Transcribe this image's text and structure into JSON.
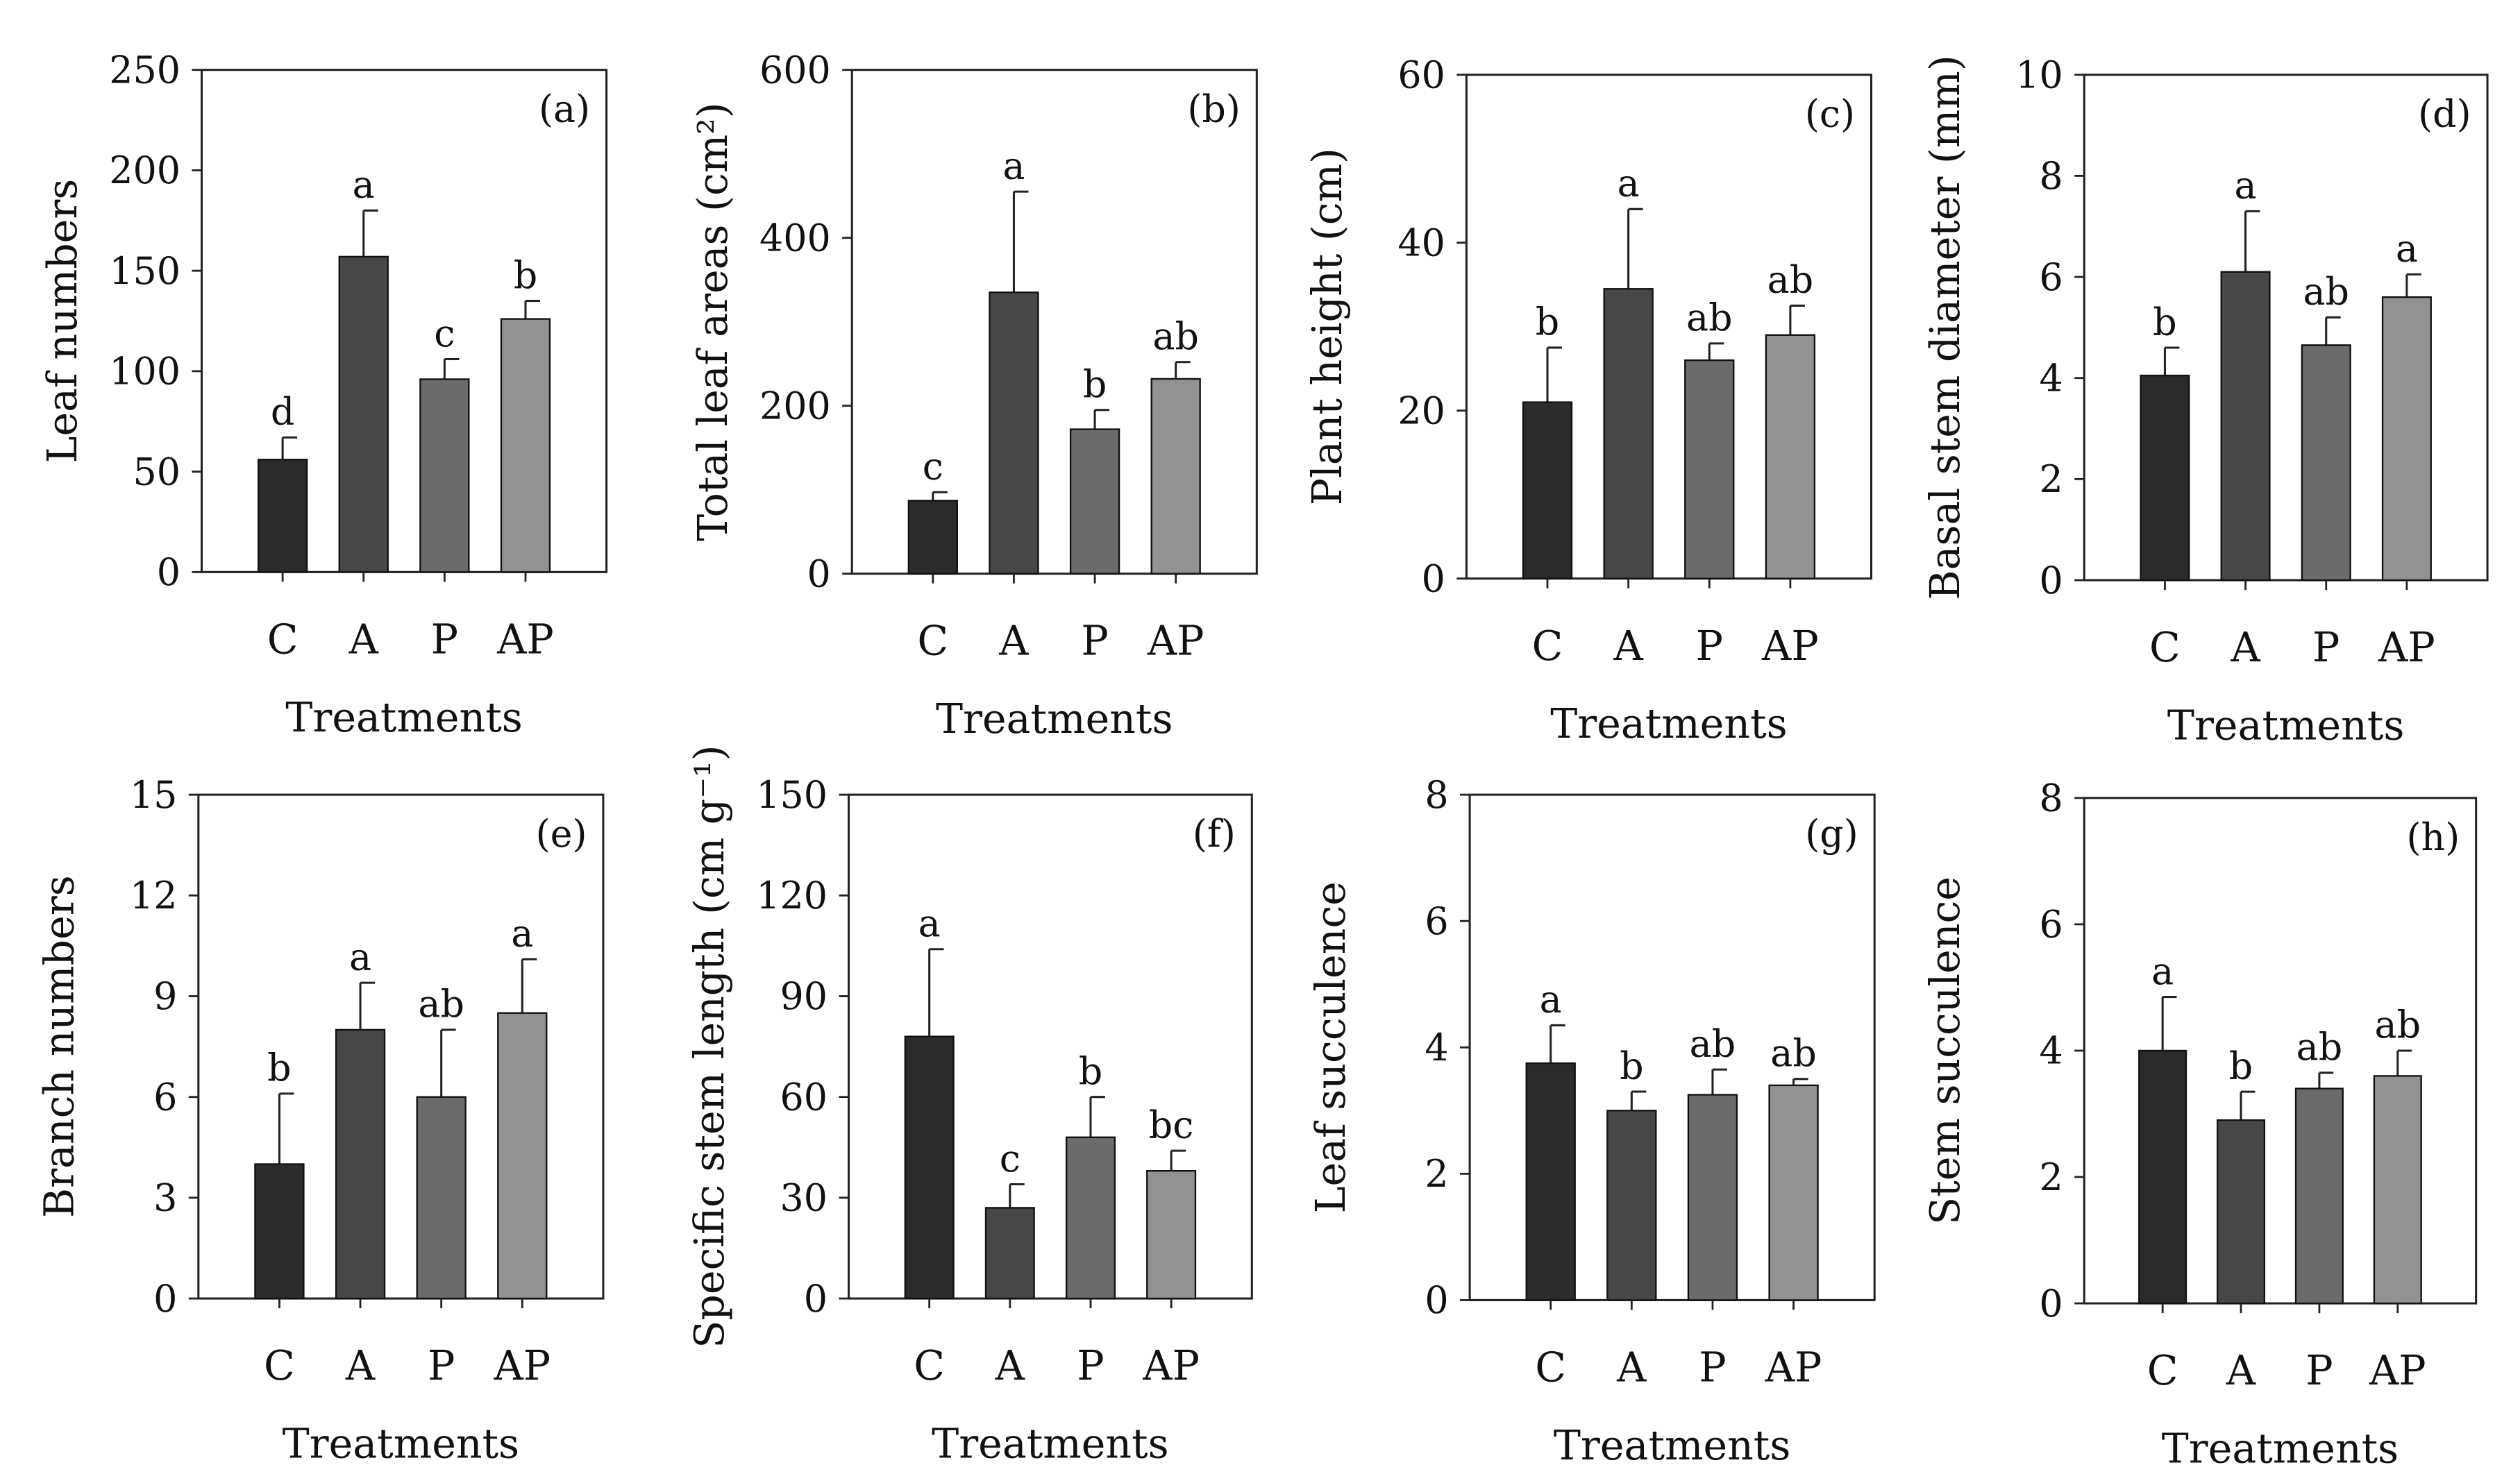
{
  "bar_colors": [
    "#2b2b2b",
    "#474747",
    "#6b6b6b",
    "#929292"
  ],
  "chart_data": [
    {
      "type": "bar",
      "panel": "(a)",
      "categories": [
        "C",
        "A",
        "P",
        "AP"
      ],
      "values": [
        56,
        157,
        96,
        126
      ],
      "errors": [
        11,
        23,
        10,
        9
      ],
      "letters": [
        "d",
        "a",
        "c",
        "b"
      ],
      "xlabel": "Treatments",
      "ylabel": "Leaf numbers",
      "ylim": [
        0,
        250
      ],
      "yticks": [
        "0",
        "50",
        "100",
        "150",
        "200",
        "250"
      ]
    },
    {
      "type": "bar",
      "panel": "(b)",
      "categories": [
        "C",
        "A",
        "P",
        "AP"
      ],
      "values": [
        87,
        335,
        172,
        232
      ],
      "errors": [
        10,
        120,
        23,
        20
      ],
      "letters": [
        "c",
        "a",
        "b",
        "ab"
      ],
      "xlabel": "Treatments",
      "ylabel": "Total leaf areas (cm²)",
      "ylim": [
        0,
        600
      ],
      "yticks": [
        "0",
        "200",
        "400",
        "600"
      ]
    },
    {
      "type": "bar",
      "panel": "(c)",
      "categories": [
        "C",
        "A",
        "P",
        "AP"
      ],
      "values": [
        21,
        34.5,
        26,
        29
      ],
      "errors": [
        6.5,
        9.5,
        2,
        3.5
      ],
      "letters": [
        "b",
        "a",
        "ab",
        "ab"
      ],
      "xlabel": "Treatments",
      "ylabel": "Plant height (cm)",
      "ylim": [
        0,
        60
      ],
      "yticks": [
        "0",
        "20",
        "40",
        "60"
      ]
    },
    {
      "type": "bar",
      "panel": "(d)",
      "categories": [
        "C",
        "A",
        "P",
        "AP"
      ],
      "values": [
        4.05,
        6.1,
        4.65,
        5.6
      ],
      "errors": [
        0.55,
        1.2,
        0.55,
        0.45
      ],
      "letters": [
        "b",
        "a",
        "ab",
        "a"
      ],
      "xlabel": "Treatments",
      "ylabel": "Basal stem diameter (mm)",
      "ylim": [
        0,
        10
      ],
      "yticks": [
        "0",
        "2",
        "4",
        "6",
        "8",
        "10"
      ]
    },
    {
      "type": "bar",
      "panel": "(e)",
      "categories": [
        "C",
        "A",
        "P",
        "AP"
      ],
      "values": [
        4,
        8,
        6,
        8.5
      ],
      "errors": [
        2.1,
        1.4,
        2,
        1.6
      ],
      "letters": [
        "b",
        "a",
        "ab",
        "a"
      ],
      "xlabel": "Treatments",
      "ylabel": "Branch numbers",
      "ylim": [
        0,
        15
      ],
      "yticks": [
        "0",
        "3",
        "6",
        "9",
        "12",
        "15"
      ]
    },
    {
      "type": "bar",
      "panel": "(f)",
      "categories": [
        "C",
        "A",
        "P",
        "AP"
      ],
      "values": [
        78,
        27,
        48,
        38
      ],
      "errors": [
        26,
        7,
        12,
        6
      ],
      "letters": [
        "a",
        "c",
        "b",
        "bc"
      ],
      "xlabel": "Treatments",
      "ylabel": "Specific stem length (cm g⁻¹)",
      "ylim": [
        0,
        150
      ],
      "yticks": [
        "0",
        "30",
        "60",
        "90",
        "120",
        "150"
      ]
    },
    {
      "type": "bar",
      "panel": "(g)",
      "categories": [
        "C",
        "A",
        "P",
        "AP"
      ],
      "values": [
        3.75,
        3.0,
        3.25,
        3.4
      ],
      "errors": [
        0.6,
        0.3,
        0.4,
        0.1
      ],
      "letters": [
        "a",
        "b",
        "ab",
        "ab"
      ],
      "xlabel": "Treatments",
      "ylabel": "Leaf succulence",
      "ylim": [
        0,
        8
      ],
      "yticks": [
        "0",
        "2",
        "4",
        "6",
        "8"
      ]
    },
    {
      "type": "bar",
      "panel": "(h)",
      "categories": [
        "C",
        "A",
        "P",
        "AP"
      ],
      "values": [
        4.0,
        2.9,
        3.4,
        3.6
      ],
      "errors": [
        0.85,
        0.45,
        0.25,
        0.4
      ],
      "letters": [
        "a",
        "b",
        "ab",
        "ab"
      ],
      "xlabel": "Treatments",
      "ylabel": "Stem succulence",
      "ylim": [
        0,
        8
      ],
      "yticks": [
        "0",
        "2",
        "4",
        "6",
        "8"
      ]
    }
  ]
}
